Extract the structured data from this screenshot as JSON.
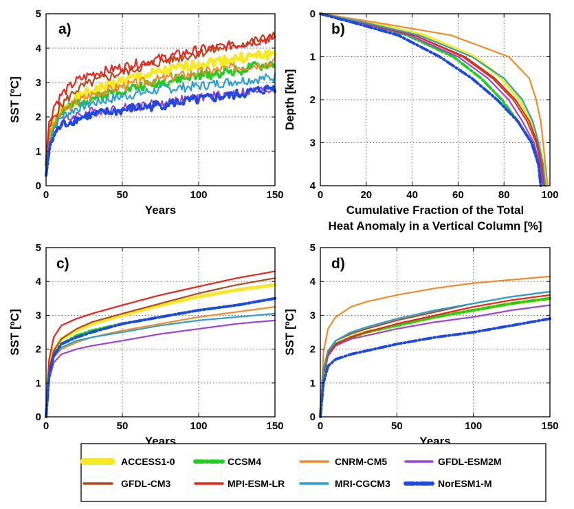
{
  "colors": {
    "ACCESS1-0": "#f5e92a",
    "CCSM4": "#22cc22",
    "CNRM-CM5": "#f28c2a",
    "GFDL-ESM2M": "#9b44d8",
    "GFDL-CM3": "#b5471e",
    "MPI-ESM-LR": "#e8261f",
    "MRI-CGCM3": "#2a9fd0",
    "NorESM1-M": "#1f48e0"
  },
  "chart_data": [
    {
      "panel": "a)",
      "type": "line",
      "xlabel": "Years",
      "ylabel": "SST  [ºC]",
      "xlim": [
        0,
        150
      ],
      "ylim": [
        0,
        5
      ],
      "xticks": [
        0,
        50,
        100,
        150
      ],
      "yticks": [
        0,
        1,
        2,
        3,
        4,
        5
      ],
      "grid": true,
      "noisy": true,
      "x": [
        0,
        2,
        5,
        10,
        20,
        30,
        50,
        75,
        100,
        125,
        150
      ],
      "series": [
        {
          "name": "ACCESS1-0",
          "values": [
            0.6,
            1.4,
            1.8,
            2.2,
            2.55,
            2.75,
            3.05,
            3.3,
            3.55,
            3.7,
            3.85
          ]
        },
        {
          "name": "CCSM4",
          "values": [
            0.6,
            1.3,
            1.7,
            2.1,
            2.4,
            2.55,
            2.8,
            3.0,
            3.2,
            3.35,
            3.55
          ]
        },
        {
          "name": "CNRM-CM5",
          "values": [
            0.6,
            1.4,
            1.8,
            2.15,
            2.45,
            2.65,
            2.9,
            3.1,
            3.3,
            3.45,
            3.6
          ]
        },
        {
          "name": "GFDL-ESM2M",
          "values": [
            0.4,
            1.1,
            1.55,
            1.85,
            2.05,
            2.15,
            2.25,
            2.4,
            2.55,
            2.7,
            2.8
          ]
        },
        {
          "name": "GFDL-CM3",
          "values": [
            0.7,
            1.6,
            2.0,
            2.35,
            2.8,
            3.0,
            3.3,
            3.6,
            3.85,
            4.1,
            4.35
          ]
        },
        {
          "name": "MPI-ESM-LR",
          "values": [
            0.8,
            1.8,
            2.3,
            2.65,
            3.05,
            3.25,
            3.45,
            3.7,
            3.95,
            4.1,
            4.3
          ]
        },
        {
          "name": "MRI-CGCM3",
          "values": [
            0.5,
            1.2,
            1.65,
            2.0,
            2.25,
            2.4,
            2.6,
            2.8,
            2.9,
            3.05,
            3.15
          ]
        },
        {
          "name": "NorESM1-M",
          "values": [
            0.3,
            1.0,
            1.45,
            1.75,
            1.95,
            2.05,
            2.2,
            2.35,
            2.5,
            2.65,
            2.85
          ]
        }
      ]
    },
    {
      "panel": "b)",
      "type": "line",
      "xlabel": "Cumulative Fraction of the Total",
      "xlabel2": "Heat Anomaly in a Vertical Column [%]",
      "ylabel": "Depth  [km]",
      "xlim": [
        0,
        100
      ],
      "ylim": [
        0,
        4
      ],
      "y_inverted": true,
      "xticks": [
        0,
        20,
        40,
        60,
        80,
        100
      ],
      "yticks": [
        0,
        1,
        2,
        3,
        4
      ],
      "grid": true,
      "depth": [
        0,
        0.2,
        0.5,
        1.0,
        1.5,
        2.0,
        2.5,
        3.0,
        3.5,
        4.0
      ],
      "series": [
        {
          "name": "ACCESS1-0",
          "values": [
            0,
            20,
            45,
            67,
            79,
            87,
            92,
            95,
            97,
            98
          ]
        },
        {
          "name": "CCSM4",
          "values": [
            0,
            17,
            38,
            58,
            70,
            79,
            86,
            92,
            95,
            97
          ]
        },
        {
          "name": "CNRM-CM5",
          "values": [
            0,
            24,
            57,
            82,
            91,
            94,
            96,
            97,
            98,
            99
          ]
        },
        {
          "name": "GFDL-ESM2M",
          "values": [
            0,
            17,
            39,
            60,
            73,
            82,
            88,
            93,
            95.5,
            97
          ]
        },
        {
          "name": "GFDL-CM3",
          "values": [
            0,
            18,
            41,
            62,
            75,
            84,
            90,
            94,
            96,
            97.5
          ]
        },
        {
          "name": "MPI-ESM-LR",
          "values": [
            0,
            18,
            41,
            63,
            76,
            85,
            91,
            94.5,
            96.5,
            98
          ]
        },
        {
          "name": "MRI-CGCM3",
          "values": [
            0,
            19,
            43,
            66,
            80,
            88,
            92.5,
            95,
            97,
            98
          ]
        },
        {
          "name": "NorESM1-M",
          "values": [
            0,
            14,
            34,
            52,
            66,
            77,
            86,
            92,
            95,
            96
          ]
        }
      ]
    },
    {
      "panel": "c)",
      "type": "line",
      "xlabel": "Years",
      "ylabel": "SST  [ºC]",
      "xlim": [
        0,
        150
      ],
      "ylim": [
        0,
        5
      ],
      "xticks": [
        0,
        50,
        100,
        150
      ],
      "yticks": [
        0,
        1,
        2,
        3,
        4,
        5
      ],
      "grid": true,
      "x": [
        0,
        2,
        5,
        10,
        20,
        30,
        50,
        75,
        100,
        125,
        150
      ],
      "series": [
        {
          "name": "ACCESS1-0",
          "values": [
            0,
            1.4,
            1.95,
            2.3,
            2.55,
            2.75,
            3.0,
            3.3,
            3.55,
            3.75,
            3.9
          ]
        },
        {
          "name": "CCSM4",
          "values": [
            0,
            1.3,
            1.85,
            2.15,
            2.4,
            2.55,
            2.75,
            2.95,
            3.15,
            3.3,
            3.5
          ]
        },
        {
          "name": "CNRM-CM5",
          "values": [
            0,
            1.25,
            1.75,
            2.0,
            2.2,
            2.35,
            2.55,
            2.75,
            2.95,
            3.1,
            3.25
          ]
        },
        {
          "name": "GFDL-ESM2M",
          "values": [
            0,
            1.1,
            1.6,
            1.85,
            2.0,
            2.1,
            2.25,
            2.45,
            2.6,
            2.75,
            2.85
          ]
        },
        {
          "name": "GFDL-CM3",
          "values": [
            0,
            1.4,
            1.95,
            2.3,
            2.6,
            2.8,
            3.05,
            3.35,
            3.65,
            3.9,
            4.1
          ]
        },
        {
          "name": "MPI-ESM-LR",
          "values": [
            0,
            1.7,
            2.35,
            2.7,
            2.9,
            3.05,
            3.3,
            3.6,
            3.85,
            4.1,
            4.3
          ]
        },
        {
          "name": "MRI-CGCM3",
          "values": [
            0,
            1.25,
            1.8,
            2.05,
            2.25,
            2.35,
            2.5,
            2.7,
            2.85,
            2.95,
            3.05
          ]
        },
        {
          "name": "NorESM1-M",
          "values": [
            0,
            1.25,
            1.8,
            2.15,
            2.35,
            2.5,
            2.75,
            2.95,
            3.15,
            3.3,
            3.5
          ]
        }
      ]
    },
    {
      "panel": "d)",
      "type": "line",
      "xlabel": "Years",
      "ylabel": "SST  [ºC]",
      "xlim": [
        0,
        150
      ],
      "ylim": [
        0,
        5
      ],
      "xticks": [
        0,
        50,
        100,
        150
      ],
      "yticks": [
        0,
        1,
        2,
        3,
        4,
        5
      ],
      "grid": true,
      "x": [
        0,
        2,
        5,
        10,
        20,
        30,
        50,
        75,
        100,
        125,
        150
      ],
      "series": [
        {
          "name": "ACCESS1-0",
          "values": [
            0,
            1.3,
            1.85,
            2.15,
            2.35,
            2.5,
            2.7,
            2.95,
            3.15,
            3.35,
            3.5
          ]
        },
        {
          "name": "CCSM4",
          "values": [
            0,
            1.3,
            1.85,
            2.15,
            2.35,
            2.5,
            2.7,
            2.95,
            3.15,
            3.35,
            3.5
          ]
        },
        {
          "name": "CNRM-CM5",
          "values": [
            0,
            1.9,
            2.6,
            2.95,
            3.25,
            3.4,
            3.6,
            3.8,
            3.95,
            4.05,
            4.15
          ]
        },
        {
          "name": "GFDL-ESM2M",
          "values": [
            0,
            1.3,
            1.8,
            2.1,
            2.3,
            2.4,
            2.6,
            2.8,
            2.95,
            3.15,
            3.3
          ]
        },
        {
          "name": "GFDL-CM3",
          "values": [
            0,
            1.4,
            1.95,
            2.25,
            2.45,
            2.6,
            2.85,
            3.1,
            3.35,
            3.55,
            3.7
          ]
        },
        {
          "name": "MPI-ESM-LR",
          "values": [
            0,
            1.3,
            1.85,
            2.15,
            2.35,
            2.5,
            2.75,
            3.0,
            3.25,
            3.45,
            3.6
          ]
        },
        {
          "name": "MRI-CGCM3",
          "values": [
            0,
            1.4,
            1.95,
            2.25,
            2.5,
            2.65,
            2.9,
            3.15,
            3.35,
            3.55,
            3.7
          ]
        },
        {
          "name": "NorESM1-M",
          "values": [
            0,
            1.0,
            1.5,
            1.7,
            1.85,
            1.95,
            2.15,
            2.35,
            2.5,
            2.7,
            2.9
          ]
        }
      ]
    }
  ],
  "legend": {
    "entries": [
      {
        "name": "ACCESS1-0",
        "style": "thick"
      },
      {
        "name": "CCSM4",
        "style": "dashdot"
      },
      {
        "name": "CNRM-CM5",
        "style": "solid"
      },
      {
        "name": "GFDL-ESM2M",
        "style": "solid"
      },
      {
        "name": "GFDL-CM3",
        "style": "solid"
      },
      {
        "name": "MPI-ESM-LR",
        "style": "solid"
      },
      {
        "name": "MRI-CGCM3",
        "style": "solid"
      },
      {
        "name": "NorESM1-M",
        "style": "dashdot"
      }
    ]
  }
}
